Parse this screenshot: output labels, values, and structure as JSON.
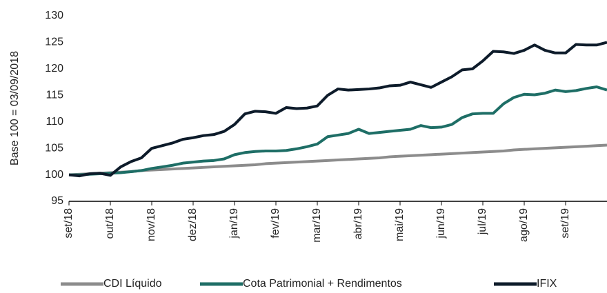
{
  "chart_data": {
    "type": "line",
    "ylabel": "Base 100 = 03/09/2018",
    "categories": [
      "set/18",
      null,
      null,
      null,
      "out/18",
      null,
      null,
      null,
      "nov/18",
      null,
      null,
      null,
      "dez/18",
      null,
      null,
      null,
      "jan/19",
      null,
      null,
      null,
      "fev/19",
      null,
      null,
      null,
      "mar/19",
      null,
      null,
      null,
      "abr/19",
      null,
      null,
      null,
      "mai/19",
      null,
      null,
      null,
      "jun/19",
      null,
      null,
      null,
      "jul/19",
      null,
      null,
      null,
      "ago/19",
      null,
      null,
      null,
      "set/19",
      null,
      null,
      null,
      null
    ],
    "series": [
      {
        "name": "CDI Líquido",
        "color": "#8c8c8c",
        "values": [
          100,
          100.1,
          100.2,
          100.3,
          100.4,
          100.5,
          100.6,
          100.8,
          100.9,
          101,
          101.1,
          101.2,
          101.3,
          101.4,
          101.5,
          101.6,
          101.7,
          101.8,
          101.9,
          102.1,
          102.2,
          102.3,
          102.4,
          102.5,
          102.6,
          102.7,
          102.8,
          102.9,
          103,
          103.1,
          103.2,
          103.4,
          103.5,
          103.6,
          103.7,
          103.8,
          103.9,
          104,
          104.1,
          104.2,
          104.3,
          104.4,
          104.5,
          104.7,
          104.8,
          104.9,
          105,
          105.1,
          105.2,
          105.3,
          105.4,
          105.5,
          105.6
        ]
      },
      {
        "name": "Cota Patrimonial + Rendimentos",
        "color": "#1e6e66",
        "values": [
          100,
          100,
          100.1,
          100.2,
          100.3,
          100.4,
          100.6,
          100.8,
          101.2,
          101.5,
          101.8,
          102.2,
          102.4,
          102.6,
          102.7,
          103,
          103.8,
          104.2,
          104.4,
          104.5,
          104.5,
          104.6,
          104.9,
          105.3,
          105.8,
          107.2,
          107.5,
          107.8,
          108.6,
          107.8,
          108,
          108.2,
          108.4,
          108.6,
          109.3,
          108.9,
          109,
          109.5,
          110.8,
          111.5,
          111.6,
          111.6,
          113.4,
          114.6,
          115.2,
          115.1,
          115.4,
          116,
          115.7,
          115.9,
          116.3,
          116.6,
          116
        ]
      },
      {
        "name": "IFIX",
        "color": "#0d1b2a",
        "values": [
          100,
          99.8,
          100.2,
          100.3,
          99.9,
          101.5,
          102.5,
          103.2,
          105,
          105.5,
          106,
          106.7,
          107,
          107.4,
          107.6,
          108.2,
          109.5,
          111.5,
          112,
          111.9,
          111.6,
          112.7,
          112.5,
          112.6,
          113,
          115,
          116.2,
          116,
          116.1,
          116.2,
          116.4,
          116.8,
          116.9,
          117.5,
          117,
          116.5,
          117.5,
          118.5,
          119.8,
          120,
          121.5,
          123.3,
          123.2,
          122.9,
          123.5,
          124.5,
          123.5,
          123,
          123,
          124.6,
          124.5,
          124.5,
          125
        ]
      }
    ],
    "ylim": [
      95,
      130
    ],
    "yticks": [
      95,
      100,
      105,
      110,
      115,
      120,
      125,
      130
    ],
    "grid": false,
    "legend": "bottom"
  }
}
